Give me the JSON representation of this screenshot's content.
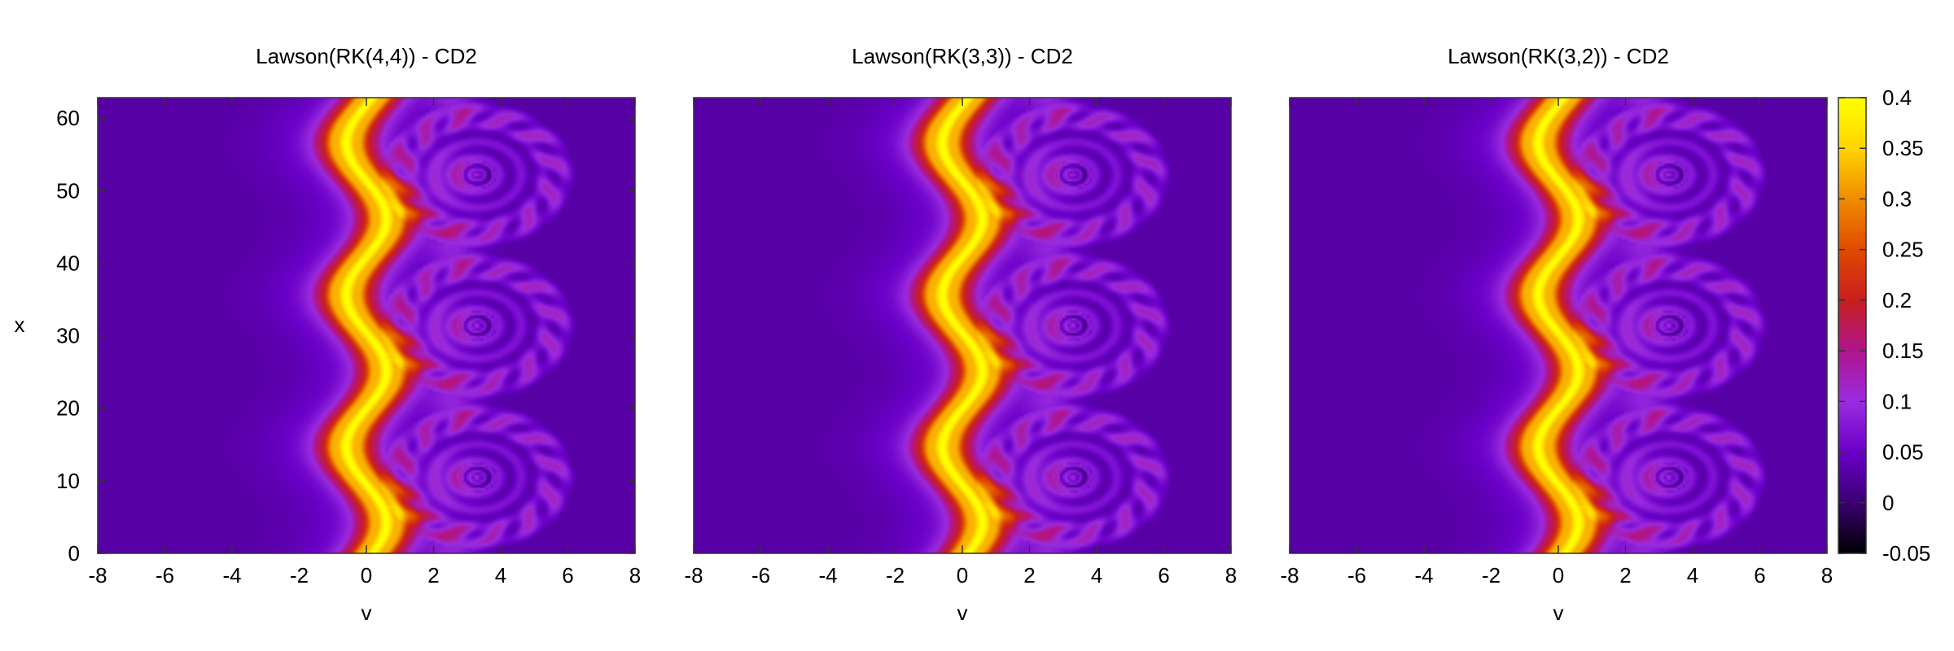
{
  "chart_data": [
    {
      "type": "heatmap",
      "title": "Lawson(RK(4,4)) - CD2",
      "xlabel": "v",
      "ylabel": "x",
      "xlim": [
        -8,
        8
      ],
      "ylim": [
        0,
        62.83
      ],
      "xticks": [
        "-8",
        "-6",
        "-4",
        "-2",
        "0",
        "2",
        "4",
        "6",
        "8"
      ],
      "yticks": [
        "0",
        "10",
        "20",
        "30",
        "40",
        "50",
        "60"
      ],
      "features": {
        "beam_center_v": 0.0,
        "beam_peak_value": 0.4,
        "beam_oscillation_amplitude_v": 0.6,
        "vortex_centers": [
          {
            "v": 3.3,
            "x": 10.5
          },
          {
            "v": 3.3,
            "x": 31.4
          },
          {
            "v": 3.3,
            "x": 52.2
          }
        ],
        "background_value": 0.03
      }
    },
    {
      "type": "heatmap",
      "title": "Lawson(RK(3,3)) - CD2",
      "xlabel": "v",
      "ylabel": "",
      "xlim": [
        -8,
        8
      ],
      "ylim": [
        0,
        62.83
      ],
      "xticks": [
        "-8",
        "-6",
        "-4",
        "-2",
        "0",
        "2",
        "4",
        "6",
        "8"
      ],
      "yticks": [],
      "features": {
        "beam_center_v": 0.0,
        "beam_peak_value": 0.4,
        "beam_oscillation_amplitude_v": 0.6,
        "vortex_centers": [
          {
            "v": 3.3,
            "x": 10.5
          },
          {
            "v": 3.3,
            "x": 31.4
          },
          {
            "v": 3.3,
            "x": 52.2
          }
        ],
        "background_value": 0.03
      }
    },
    {
      "type": "heatmap",
      "title": "Lawson(RK(3,2)) - CD2",
      "xlabel": "v",
      "ylabel": "",
      "xlim": [
        -8,
        8
      ],
      "ylim": [
        0,
        62.83
      ],
      "xticks": [
        "-8",
        "-6",
        "-4",
        "-2",
        "0",
        "2",
        "4",
        "6",
        "8"
      ],
      "yticks": [],
      "features": {
        "beam_center_v": 0.0,
        "beam_peak_value": 0.4,
        "beam_oscillation_amplitude_v": 0.6,
        "vortex_centers": [
          {
            "v": 3.3,
            "x": 10.5
          },
          {
            "v": 3.3,
            "x": 31.4
          },
          {
            "v": 3.3,
            "x": 52.2
          }
        ],
        "background_value": 0.03
      }
    }
  ],
  "colorbar": {
    "range": [
      -0.05,
      0.4
    ],
    "ticks": [
      "-0.05",
      "0",
      "0.05",
      "0.1",
      "0.15",
      "0.2",
      "0.25",
      "0.3",
      "0.35",
      "0.4"
    ],
    "colormap": [
      "#000000",
      "#3a0070",
      "#6a00c8",
      "#9a2ce0",
      "#b0148c",
      "#c81e1e",
      "#e04a00",
      "#f08c00",
      "#ffd400",
      "#ffff00"
    ]
  }
}
